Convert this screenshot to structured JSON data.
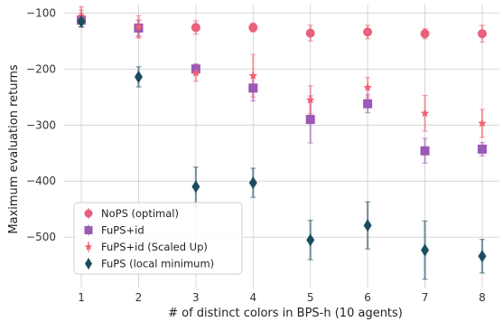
{
  "chart_data": {
    "type": "scatter",
    "title": "",
    "xlabel": "# of distinct colors in BPS-h (10 agents)",
    "ylabel": "Maximum evaluation returns",
    "x": [
      1,
      2,
      3,
      4,
      5,
      6,
      7,
      8
    ],
    "x_ticks": [
      "1",
      "2",
      "3",
      "4",
      "5",
      "6",
      "7",
      "8"
    ],
    "y_ticks": [
      "−100",
      "−200",
      "−300",
      "−400",
      "−500"
    ],
    "y_tick_values": [
      -100,
      -200,
      -300,
      -400,
      -500
    ],
    "xlim": [
      0.7,
      8.3
    ],
    "ylim": [
      -590,
      -85
    ],
    "grid": true,
    "legend_position": "lower-left",
    "series": [
      {
        "name": "NoPS (optimal)",
        "marker": "circle",
        "color": "#e8607b",
        "values": [
          -110,
          -128,
          -126,
          -126,
          -136,
          -134,
          -137,
          -137
        ],
        "errors": [
          15,
          15,
          12,
          8,
          14,
          12,
          9,
          15
        ]
      },
      {
        "name": "FuPS+id",
        "marker": "square",
        "color": "#9b59b6",
        "values": [
          -113,
          -127,
          -200,
          -234,
          -290,
          -262,
          -346,
          -343
        ],
        "errors": [
          12,
          14,
          9,
          23,
          42,
          16,
          22,
          12
        ]
      },
      {
        "name": "FuPS+id (Scaled Up)",
        "marker": "star",
        "color": "#f06070",
        "values": [
          -107,
          -125,
          -207,
          -212,
          -255,
          -233,
          -279,
          -297
        ],
        "errors": [
          18,
          20,
          15,
          38,
          25,
          18,
          32,
          25
        ]
      },
      {
        "name": "FuPS (local minimum)",
        "marker": "diamond",
        "color": "#1a4d5e",
        "values": [
          -115,
          -214,
          -410,
          -403,
          -505,
          -479,
          -523,
          -534
        ],
        "errors": [
          10,
          18,
          35,
          26,
          35,
          42,
          52,
          30
        ]
      }
    ]
  }
}
